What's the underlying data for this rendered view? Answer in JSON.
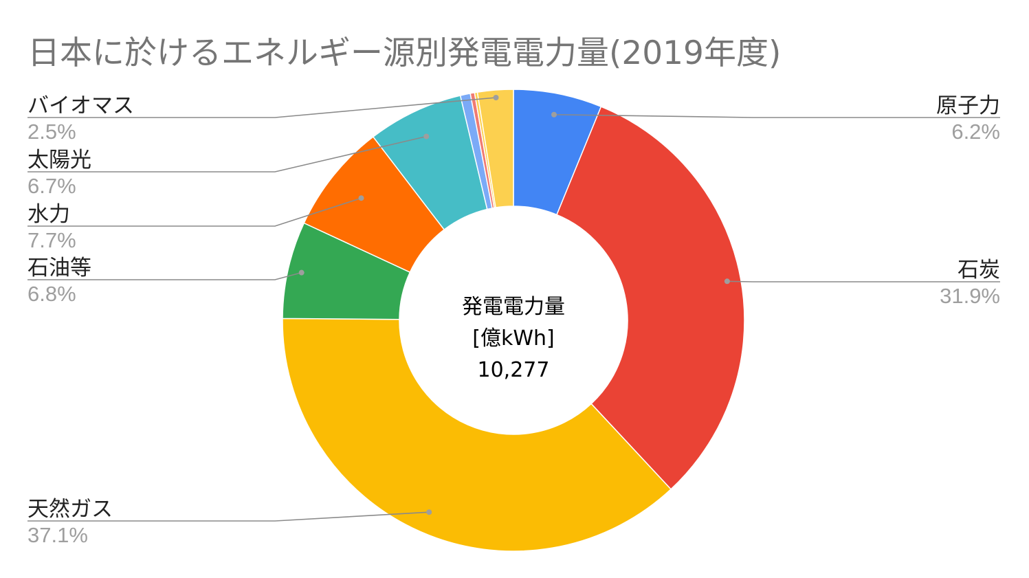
{
  "chart_data": {
    "type": "pie",
    "donut": true,
    "title": "日本に於けるエネルギー源別発電電力量(2019年度)",
    "center_label": [
      "発電電力量",
      "[億kWh]",
      "10,277"
    ],
    "series": [
      {
        "label": "原子力",
        "value": 6.2,
        "value_label": "6.2%",
        "color": "#4285f4",
        "label_side": "right"
      },
      {
        "label": "石炭",
        "value": 31.9,
        "value_label": "31.9%",
        "color": "#ea4335",
        "label_side": "right"
      },
      {
        "label": "天然ガス",
        "value": 37.1,
        "value_label": "37.1%",
        "color": "#fbbc04",
        "label_side": "left"
      },
      {
        "label": "石油等",
        "value": 6.8,
        "value_label": "6.8%",
        "color": "#34a853",
        "label_side": "left"
      },
      {
        "label": "水力",
        "value": 7.7,
        "value_label": "7.7%",
        "color": "#ff6d01",
        "label_side": "left"
      },
      {
        "label": "太陽光",
        "value": 6.7,
        "value_label": "6.7%",
        "color": "#46bdc6",
        "label_side": "left"
      },
      {
        "label": "",
        "value": 0.7,
        "value_label": "",
        "color": "#7baaf7",
        "label_side": "none"
      },
      {
        "label": "",
        "value": 0.3,
        "value_label": "",
        "color": "#f07b72",
        "label_side": "none"
      },
      {
        "label": "",
        "value": 0.2,
        "value_label": "",
        "color": "#fcd04f",
        "label_side": "none"
      },
      {
        "label": "バイオマス",
        "value": 2.5,
        "value_label": "2.5%",
        "color": "#fcd04f",
        "label_side": "left"
      }
    ]
  }
}
